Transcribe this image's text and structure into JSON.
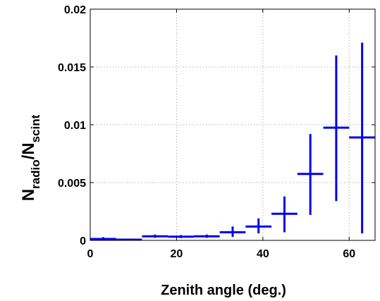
{
  "chart_data": {
    "type": "scatter",
    "title": "",
    "xlabel": "Zenith angle (deg.)",
    "ylabel": {
      "n": "N",
      "sub1": "radio",
      "slash": "/",
      "n2": "N",
      "sub2": "scint"
    },
    "xlim": [
      0,
      66
    ],
    "ylim": [
      0,
      0.02
    ],
    "grid": true,
    "x_ticks": [
      0,
      20,
      40,
      60
    ],
    "x_tick_labels": [
      "0",
      "20",
      "40",
      "60"
    ],
    "y_ticks": [
      0,
      0.005,
      0.01,
      0.015,
      0.02
    ],
    "y_tick_labels": [
      "0",
      "0.005",
      "0.01",
      "0.015",
      "0.02"
    ],
    "series": [
      {
        "color": "#0000ee",
        "points": [
          {
            "x": 3,
            "y": 0.00012,
            "xerr": 3,
            "ylo": 4e-05,
            "yhi": 0.00028
          },
          {
            "x": 9,
            "y": 6e-05,
            "xerr": 3,
            "ylo": 2e-05,
            "yhi": 0.00012
          },
          {
            "x": 15,
            "y": 0.00035,
            "xerr": 3,
            "ylo": 0.00022,
            "yhi": 0.0005
          },
          {
            "x": 21,
            "y": 0.00032,
            "xerr": 3,
            "ylo": 0.0002,
            "yhi": 0.00046
          },
          {
            "x": 27,
            "y": 0.00035,
            "xerr": 3,
            "ylo": 0.00022,
            "yhi": 0.0005
          },
          {
            "x": 33,
            "y": 0.0007,
            "xerr": 3,
            "ylo": 0.0003,
            "yhi": 0.0012
          },
          {
            "x": 39,
            "y": 0.0012,
            "xerr": 3,
            "ylo": 0.0006,
            "yhi": 0.0019
          },
          {
            "x": 45,
            "y": 0.0023,
            "xerr": 3,
            "ylo": 0.0007,
            "yhi": 0.0038
          },
          {
            "x": 51,
            "y": 0.00575,
            "xerr": 3,
            "ylo": 0.0022,
            "yhi": 0.0092
          },
          {
            "x": 57,
            "y": 0.00975,
            "xerr": 3,
            "ylo": 0.0034,
            "yhi": 0.016
          },
          {
            "x": 63,
            "y": 0.0089,
            "xerr": 3,
            "ylo": 0.0006,
            "yhi": 0.0171
          }
        ]
      }
    ]
  }
}
